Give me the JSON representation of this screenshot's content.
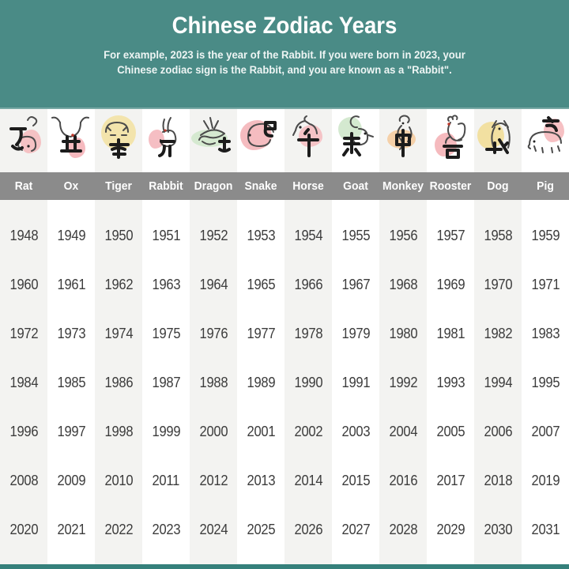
{
  "header": {
    "title": "Chinese Zodiac Years",
    "subtitle_line1": "For example, 2023 is the year of the Rabbit. If you were born in 2023, your",
    "subtitle_line2": "Chinese zodiac sign is the Rabbit, and you are known as a \"Rabbit\"."
  },
  "zodiac_strip": {
    "animals": [
      {
        "name": "Rat",
        "icon": "rat-ink-illustration",
        "blob_color": "#f5b8bc"
      },
      {
        "name": "Ox",
        "icon": "ox-ink-illustration",
        "blob_color": "#f5aeb4"
      },
      {
        "name": "Tiger",
        "icon": "tiger-ink-illustration",
        "blob_color": "#f2e0a0"
      },
      {
        "name": "Rabbit",
        "icon": "rabbit-ink-illustration",
        "blob_color": "#f3b3b8"
      },
      {
        "name": "Dragon",
        "icon": "dragon-ink-illustration",
        "blob_color": "#cfe6ca"
      },
      {
        "name": "Snake",
        "icon": "snake-ink-illustration",
        "blob_color": "#f3b0b5"
      },
      {
        "name": "Horse",
        "icon": "horse-ink-illustration",
        "blob_color": "#f5babe"
      },
      {
        "name": "Goat",
        "icon": "goat-ink-illustration",
        "blob_color": "#cde5c8"
      },
      {
        "name": "Monkey",
        "icon": "monkey-ink-illustration",
        "blob_color": "#f4c99b"
      },
      {
        "name": "Rooster",
        "icon": "rooster-ink-illustration",
        "blob_color": "#f3aeb3"
      },
      {
        "name": "Dog",
        "icon": "dog-ink-illustration",
        "blob_color": "#f1dc93"
      },
      {
        "name": "Pig",
        "icon": "pig-ink-illustration",
        "blob_color": "#f4b5b9"
      }
    ]
  },
  "chart_data": {
    "type": "table",
    "title": "Chinese Zodiac Years",
    "columns": [
      "Rat",
      "Ox",
      "Tiger",
      "Rabbit",
      "Dragon",
      "Snake",
      "Horse",
      "Goat",
      "Monkey",
      "Rooster",
      "Dog",
      "Pig"
    ],
    "rows": [
      [
        1948,
        1949,
        1950,
        1951,
        1952,
        1953,
        1954,
        1955,
        1956,
        1957,
        1958,
        1959
      ],
      [
        1960,
        1961,
        1962,
        1963,
        1964,
        1965,
        1966,
        1967,
        1968,
        1969,
        1970,
        1971
      ],
      [
        1972,
        1973,
        1974,
        1975,
        1976,
        1977,
        1978,
        1979,
        1980,
        1981,
        1982,
        1983
      ],
      [
        1984,
        1985,
        1986,
        1987,
        1988,
        1989,
        1990,
        1991,
        1992,
        1993,
        1994,
        1995
      ],
      [
        1996,
        1997,
        1998,
        1999,
        2000,
        2001,
        2002,
        2003,
        2004,
        2005,
        2006,
        2007
      ],
      [
        2008,
        2009,
        2010,
        2011,
        2012,
        2013,
        2014,
        2015,
        2016,
        2017,
        2018,
        2019
      ],
      [
        2020,
        2021,
        2022,
        2023,
        2024,
        2025,
        2026,
        2027,
        2028,
        2029,
        2030,
        2031
      ]
    ]
  },
  "colors": {
    "header_teal": "#4a8b86",
    "footer_teal": "#35807b",
    "name_bar_gray": "#8b8b8b",
    "stripe_gray": "#f3f3f1",
    "year_text": "#3c3c3c",
    "ink_light": "#4a4a4a",
    "ink_bold": "#1c1c1c"
  }
}
